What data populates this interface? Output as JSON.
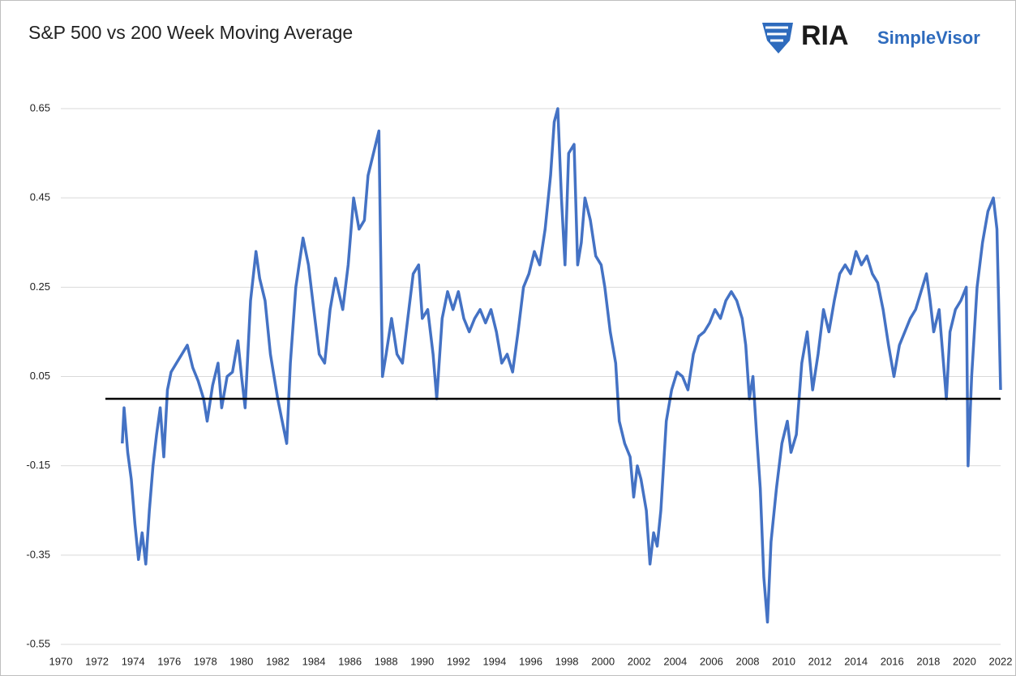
{
  "chart_data": {
    "type": "line",
    "title": "S&P 500 vs 200 Week Moving Average",
    "brand": "RIA",
    "brand_sub": "SimpleVisor",
    "xlim": [
      1970,
      2022
    ],
    "xticks": [
      1970,
      1972,
      1974,
      1976,
      1978,
      1980,
      1982,
      1984,
      1986,
      1988,
      1990,
      1992,
      1994,
      1996,
      1998,
      2000,
      2002,
      2004,
      2006,
      2008,
      2010,
      2012,
      2014,
      2016,
      2018,
      2020,
      2022
    ],
    "ylim": [
      -0.55,
      0.65
    ],
    "yticks": [
      -0.55,
      -0.35,
      -0.15,
      0.05,
      0.25,
      0.45,
      0.65
    ],
    "grid": true,
    "reference_line": 0,
    "series": [
      {
        "name": "S&P 500 vs 200 Week Moving Average",
        "color": "#4472c4",
        "x": [
          1973.4,
          1973.5,
          1973.7,
          1973.9,
          1974.1,
          1974.3,
          1974.5,
          1974.7,
          1974.9,
          1975.1,
          1975.3,
          1975.5,
          1975.7,
          1975.9,
          1976.1,
          1976.4,
          1976.7,
          1977.0,
          1977.3,
          1977.6,
          1977.9,
          1978.1,
          1978.4,
          1978.7,
          1978.9,
          1979.2,
          1979.5,
          1979.8,
          1980.0,
          1980.2,
          1980.5,
          1980.8,
          1981.0,
          1981.3,
          1981.6,
          1981.8,
          1982.0,
          1982.2,
          1982.5,
          1982.7,
          1983.0,
          1983.4,
          1983.7,
          1984.0,
          1984.3,
          1984.6,
          1984.9,
          1985.2,
          1985.6,
          1985.9,
          1986.2,
          1986.5,
          1986.8,
          1987.0,
          1987.3,
          1987.6,
          1987.8,
          1988.0,
          1988.3,
          1988.6,
          1988.9,
          1989.2,
          1989.5,
          1989.8,
          1990.0,
          1990.3,
          1990.6,
          1990.8,
          1991.1,
          1991.4,
          1991.7,
          1992.0,
          1992.3,
          1992.6,
          1992.9,
          1993.2,
          1993.5,
          1993.8,
          1994.1,
          1994.4,
          1994.7,
          1995.0,
          1995.3,
          1995.6,
          1995.9,
          1996.2,
          1996.5,
          1996.8,
          1997.1,
          1997.3,
          1997.5,
          1997.7,
          1997.9,
          1998.1,
          1998.4,
          1998.6,
          1998.8,
          1999.0,
          1999.3,
          1999.6,
          1999.9,
          2000.1,
          2000.4,
          2000.7,
          2000.9,
          2001.2,
          2001.5,
          2001.7,
          2001.9,
          2002.1,
          2002.4,
          2002.6,
          2002.8,
          2003.0,
          2003.2,
          2003.5,
          2003.8,
          2004.1,
          2004.4,
          2004.7,
          2005.0,
          2005.3,
          2005.6,
          2005.9,
          2006.2,
          2006.5,
          2006.8,
          2007.1,
          2007.4,
          2007.7,
          2007.9,
          2008.1,
          2008.3,
          2008.5,
          2008.7,
          2008.9,
          2009.1,
          2009.3,
          2009.6,
          2009.9,
          2010.2,
          2010.4,
          2010.7,
          2011.0,
          2011.3,
          2011.6,
          2011.9,
          2012.2,
          2012.5,
          2012.8,
          2013.1,
          2013.4,
          2013.7,
          2014.0,
          2014.3,
          2014.6,
          2014.9,
          2015.2,
          2015.5,
          2015.8,
          2016.1,
          2016.4,
          2016.7,
          2017.0,
          2017.3,
          2017.6,
          2017.9,
          2018.1,
          2018.3,
          2018.6,
          2018.9,
          2019.0,
          2019.2,
          2019.5,
          2019.8,
          2020.1,
          2020.2,
          2020.4,
          2020.7,
          2021.0,
          2021.3,
          2021.6,
          2021.8,
          2021.9,
          2022.0
        ],
        "values": [
          -0.1,
          -0.02,
          -0.12,
          -0.18,
          -0.28,
          -0.36,
          -0.3,
          -0.37,
          -0.25,
          -0.15,
          -0.08,
          -0.02,
          -0.13,
          0.02,
          0.06,
          0.08,
          0.1,
          0.12,
          0.07,
          0.04,
          0.0,
          -0.05,
          0.03,
          0.08,
          -0.02,
          0.05,
          0.06,
          0.13,
          0.05,
          -0.02,
          0.22,
          0.33,
          0.27,
          0.22,
          0.1,
          0.05,
          0.0,
          -0.04,
          -0.1,
          0.08,
          0.25,
          0.36,
          0.3,
          0.2,
          0.1,
          0.08,
          0.2,
          0.27,
          0.2,
          0.3,
          0.45,
          0.38,
          0.4,
          0.5,
          0.55,
          0.6,
          0.05,
          0.1,
          0.18,
          0.1,
          0.08,
          0.18,
          0.28,
          0.3,
          0.18,
          0.2,
          0.1,
          0.0,
          0.18,
          0.24,
          0.2,
          0.24,
          0.18,
          0.15,
          0.18,
          0.2,
          0.17,
          0.2,
          0.15,
          0.08,
          0.1,
          0.06,
          0.15,
          0.25,
          0.28,
          0.33,
          0.3,
          0.38,
          0.5,
          0.62,
          0.65,
          0.45,
          0.3,
          0.55,
          0.57,
          0.3,
          0.35,
          0.45,
          0.4,
          0.32,
          0.3,
          0.25,
          0.15,
          0.08,
          -0.05,
          -0.1,
          -0.13,
          -0.22,
          -0.15,
          -0.18,
          -0.25,
          -0.37,
          -0.3,
          -0.33,
          -0.25,
          -0.05,
          0.02,
          0.06,
          0.05,
          0.02,
          0.1,
          0.14,
          0.15,
          0.17,
          0.2,
          0.18,
          0.22,
          0.24,
          0.22,
          0.18,
          0.12,
          0.0,
          0.05,
          -0.08,
          -0.2,
          -0.4,
          -0.5,
          -0.32,
          -0.2,
          -0.1,
          -0.05,
          -0.12,
          -0.08,
          0.08,
          0.15,
          0.02,
          0.1,
          0.2,
          0.15,
          0.22,
          0.28,
          0.3,
          0.28,
          0.33,
          0.3,
          0.32,
          0.28,
          0.26,
          0.2,
          0.12,
          0.05,
          0.12,
          0.15,
          0.18,
          0.2,
          0.24,
          0.28,
          0.22,
          0.15,
          0.2,
          0.05,
          0.0,
          0.15,
          0.2,
          0.22,
          0.25,
          -0.15,
          0.05,
          0.25,
          0.35,
          0.42,
          0.45,
          0.38,
          0.2,
          0.02
        ]
      }
    ]
  }
}
